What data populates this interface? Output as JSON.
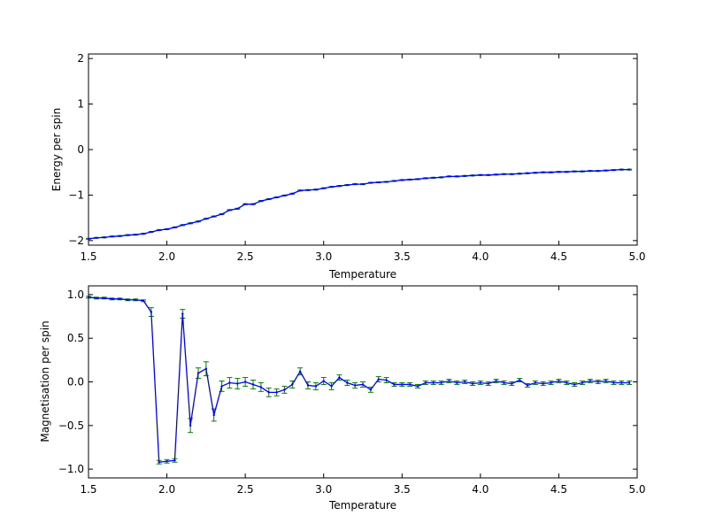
{
  "chart_data": [
    {
      "type": "line",
      "xlabel": "Temperature",
      "ylabel": "Energy per spin",
      "xlim": [
        1.5,
        5.0
      ],
      "ylim": [
        -2.1,
        2.1
      ],
      "xticks": [
        "1.5",
        "2.0",
        "2.5",
        "3.0",
        "3.5",
        "4.0",
        "4.5",
        "5.0"
      ],
      "yticks": [
        "−2",
        "−1",
        "0",
        "1",
        "2"
      ],
      "grid": false,
      "error_bars": true,
      "colors": {
        "line": "#0000ff",
        "error": "#008000",
        "marker": "#0000ff"
      },
      "x": [
        1.5,
        1.55,
        1.6,
        1.65,
        1.7,
        1.75,
        1.8,
        1.85,
        1.9,
        1.95,
        2.0,
        2.05,
        2.1,
        2.15,
        2.2,
        2.25,
        2.3,
        2.35,
        2.4,
        2.45,
        2.5,
        2.55,
        2.6,
        2.65,
        2.7,
        2.75,
        2.8,
        2.85,
        2.9,
        2.95,
        3.0,
        3.05,
        3.1,
        3.15,
        3.2,
        3.25,
        3.3,
        3.35,
        3.4,
        3.45,
        3.5,
        3.55,
        3.6,
        3.65,
        3.7,
        3.75,
        3.8,
        3.85,
        3.9,
        3.95,
        4.0,
        4.05,
        4.1,
        4.15,
        4.2,
        4.25,
        4.3,
        4.35,
        4.4,
        4.45,
        4.5,
        4.55,
        4.6,
        4.65,
        4.7,
        4.75,
        4.8,
        4.85,
        4.9,
        4.95
      ],
      "y": [
        -1.96,
        -1.94,
        -1.93,
        -1.91,
        -1.9,
        -1.88,
        -1.87,
        -1.85,
        -1.81,
        -1.77,
        -1.75,
        -1.71,
        -1.66,
        -1.62,
        -1.58,
        -1.52,
        -1.47,
        -1.42,
        -1.33,
        -1.3,
        -1.2,
        -1.2,
        -1.13,
        -1.09,
        -1.05,
        -1.01,
        -0.97,
        -0.9,
        -0.89,
        -0.88,
        -0.85,
        -0.82,
        -0.8,
        -0.78,
        -0.76,
        -0.76,
        -0.73,
        -0.72,
        -0.71,
        -0.69,
        -0.67,
        -0.66,
        -0.65,
        -0.63,
        -0.62,
        -0.61,
        -0.59,
        -0.59,
        -0.58,
        -0.57,
        -0.56,
        -0.56,
        -0.55,
        -0.54,
        -0.54,
        -0.53,
        -0.52,
        -0.51,
        -0.5,
        -0.5,
        -0.49,
        -0.49,
        -0.48,
        -0.48,
        -0.47,
        -0.47,
        -0.46,
        -0.45,
        -0.44,
        -0.44
      ],
      "err": [
        0.01,
        0.01,
        0.01,
        0.01,
        0.01,
        0.01,
        0.01,
        0.01,
        0.01,
        0.01,
        0.01,
        0.01,
        0.01,
        0.01,
        0.01,
        0.01,
        0.01,
        0.01,
        0.01,
        0.01,
        0.01,
        0.01,
        0.01,
        0.01,
        0.01,
        0.01,
        0.01,
        0.01,
        0.01,
        0.01,
        0.01,
        0.01,
        0.01,
        0.01,
        0.01,
        0.01,
        0.01,
        0.01,
        0.01,
        0.01,
        0.01,
        0.01,
        0.01,
        0.01,
        0.01,
        0.01,
        0.01,
        0.01,
        0.01,
        0.01,
        0.01,
        0.01,
        0.01,
        0.01,
        0.01,
        0.01,
        0.01,
        0.01,
        0.01,
        0.01,
        0.01,
        0.01,
        0.01,
        0.01,
        0.01,
        0.01,
        0.01,
        0.01,
        0.01,
        0.01
      ]
    },
    {
      "type": "line",
      "xlabel": "Temperature",
      "ylabel": "Magnetisation per spin",
      "xlim": [
        1.5,
        5.0
      ],
      "ylim": [
        -1.1,
        1.1
      ],
      "xticks": [
        "1.5",
        "2.0",
        "2.5",
        "3.0",
        "3.5",
        "4.0",
        "4.5",
        "5.0"
      ],
      "yticks": [
        "−1.0",
        "−0.5",
        "0.0",
        "0.5",
        "1.0"
      ],
      "grid": false,
      "error_bars": true,
      "colors": {
        "line": "#0000ff",
        "error": "#008000",
        "marker": "#0000ff"
      },
      "x": [
        1.5,
        1.55,
        1.6,
        1.65,
        1.7,
        1.75,
        1.8,
        1.85,
        1.9,
        1.95,
        2.0,
        2.05,
        2.1,
        2.15,
        2.2,
        2.25,
        2.3,
        2.35,
        2.4,
        2.45,
        2.5,
        2.55,
        2.6,
        2.65,
        2.7,
        2.75,
        2.8,
        2.85,
        2.9,
        2.95,
        3.0,
        3.05,
        3.1,
        3.15,
        3.2,
        3.25,
        3.3,
        3.35,
        3.4,
        3.45,
        3.5,
        3.55,
        3.6,
        3.65,
        3.7,
        3.75,
        3.8,
        3.85,
        3.9,
        3.95,
        4.0,
        4.05,
        4.1,
        4.15,
        4.2,
        4.25,
        4.3,
        4.35,
        4.4,
        4.45,
        4.5,
        4.55,
        4.6,
        4.65,
        4.7,
        4.75,
        4.8,
        4.85,
        4.9,
        4.95
      ],
      "y": [
        0.97,
        0.96,
        0.96,
        0.95,
        0.95,
        0.94,
        0.94,
        0.93,
        0.8,
        -0.92,
        -0.91,
        -0.9,
        0.78,
        -0.5,
        0.1,
        0.15,
        -0.38,
        -0.05,
        -0.01,
        -0.02,
        0.0,
        -0.03,
        -0.06,
        -0.12,
        -0.12,
        -0.09,
        -0.03,
        0.12,
        -0.04,
        -0.05,
        0.01,
        -0.05,
        0.05,
        -0.01,
        -0.04,
        -0.03,
        -0.09,
        0.03,
        0.02,
        -0.03,
        -0.03,
        -0.03,
        -0.05,
        -0.01,
        -0.01,
        -0.01,
        0.01,
        -0.01,
        0.0,
        -0.02,
        -0.01,
        -0.02,
        0.01,
        -0.01,
        -0.02,
        0.02,
        -0.04,
        -0.01,
        -0.02,
        -0.01,
        0.01,
        -0.01,
        -0.03,
        -0.01,
        0.01,
        0.0,
        0.01,
        -0.01,
        -0.01,
        -0.01
      ],
      "err": [
        0.01,
        0.01,
        0.01,
        0.01,
        0.01,
        0.01,
        0.01,
        0.01,
        0.05,
        0.02,
        0.02,
        0.02,
        0.05,
        0.08,
        0.06,
        0.08,
        0.07,
        0.06,
        0.06,
        0.06,
        0.05,
        0.05,
        0.05,
        0.05,
        0.04,
        0.04,
        0.04,
        0.04,
        0.04,
        0.04,
        0.04,
        0.04,
        0.03,
        0.03,
        0.03,
        0.03,
        0.03,
        0.03,
        0.03,
        0.02,
        0.02,
        0.02,
        0.02,
        0.02,
        0.02,
        0.02,
        0.02,
        0.02,
        0.02,
        0.02,
        0.02,
        0.02,
        0.02,
        0.02,
        0.02,
        0.02,
        0.02,
        0.02,
        0.02,
        0.02,
        0.02,
        0.02,
        0.02,
        0.02,
        0.02,
        0.02,
        0.02,
        0.02,
        0.02,
        0.02
      ]
    }
  ]
}
